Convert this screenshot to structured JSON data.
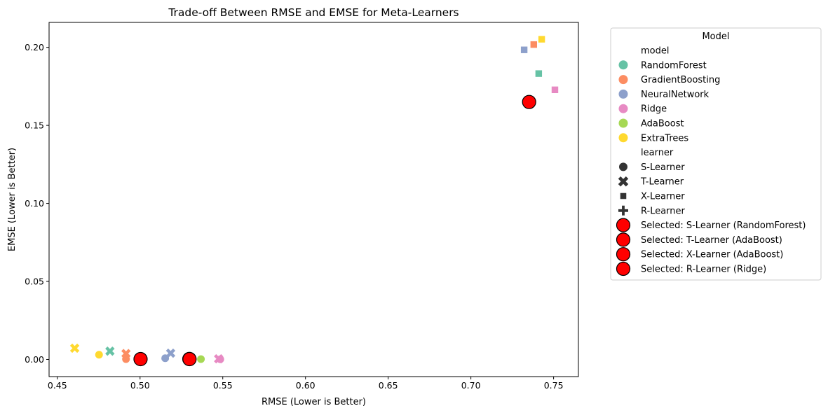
{
  "chart_data": {
    "type": "scatter",
    "title": "Trade-off Between RMSE and EMSE for Meta-Learners",
    "xlabel": "RMSE (Lower is Better)",
    "ylabel": "EMSE (Lower is Better)",
    "xlim": [
      0.445,
      0.765
    ],
    "ylim": [
      -0.011,
      0.216
    ],
    "xticks": [
      0.45,
      0.5,
      0.55,
      0.6,
      0.65,
      0.7,
      0.75
    ],
    "xtick_labels": [
      "0.45",
      "0.50",
      "0.55",
      "0.60",
      "0.65",
      "0.70",
      "0.75"
    ],
    "yticks": [
      0.0,
      0.05,
      0.1,
      0.15,
      0.2
    ],
    "ytick_labels": [
      "0.00",
      "0.05",
      "0.10",
      "0.15",
      "0.20"
    ],
    "grid": false,
    "legend_position": "outside-right",
    "colors": {
      "RandomForest": "#66c2a5",
      "GradientBoosting": "#fc8d62",
      "NeuralNetwork": "#8da0cb",
      "Ridge": "#e78ac3",
      "AdaBoost": "#a6d854",
      "ExtraTrees": "#ffd92f",
      "Selected": "#ff0000"
    },
    "points": [
      {
        "model": "RandomForest",
        "learner": "S-Learner",
        "x": 0.5003,
        "y": 0.0002
      },
      {
        "model": "GradientBoosting",
        "learner": "S-Learner",
        "x": 0.4915,
        "y": 0.0002
      },
      {
        "model": "NeuralNetwork",
        "learner": "S-Learner",
        "x": 0.5152,
        "y": 0.0008
      },
      {
        "model": "Ridge",
        "learner": "S-Learner",
        "x": 0.5485,
        "y": 0.0001
      },
      {
        "model": "AdaBoost",
        "learner": "S-Learner",
        "x": 0.5368,
        "y": 0.0002
      },
      {
        "model": "ExtraTrees",
        "learner": "S-Learner",
        "x": 0.4752,
        "y": 0.003
      },
      {
        "model": "RandomForest",
        "learner": "T-Learner",
        "x": 0.4818,
        "y": 0.0053
      },
      {
        "model": "GradientBoosting",
        "learner": "T-Learner",
        "x": 0.4915,
        "y": 0.0038
      },
      {
        "model": "NeuralNetwork",
        "learner": "T-Learner",
        "x": 0.5185,
        "y": 0.004
      },
      {
        "model": "Ridge",
        "learner": "T-Learner",
        "x": 0.5475,
        "y": 0.0004
      },
      {
        "model": "AdaBoost",
        "learner": "T-Learner",
        "x": 0.5298,
        "y": 0.0003
      },
      {
        "model": "ExtraTrees",
        "learner": "T-Learner",
        "x": 0.4605,
        "y": 0.0072
      },
      {
        "model": "RandomForest",
        "learner": "X-Learner",
        "x": 0.741,
        "y": 0.1832
      },
      {
        "model": "GradientBoosting",
        "learner": "X-Learner",
        "x": 0.738,
        "y": 0.2018
      },
      {
        "model": "NeuralNetwork",
        "learner": "X-Learner",
        "x": 0.7322,
        "y": 0.1984
      },
      {
        "model": "Ridge",
        "learner": "X-Learner",
        "x": 0.7508,
        "y": 0.1728
      },
      {
        "model": "AdaBoost",
        "learner": "X-Learner",
        "x": 0.7352,
        "y": 0.165
      },
      {
        "model": "ExtraTrees",
        "learner": "X-Learner",
        "x": 0.7428,
        "y": 0.2052
      },
      {
        "model": "Ridge",
        "learner": "R-Learner",
        "x": 0.5299,
        "y": 0.0002
      }
    ],
    "selected": [
      {
        "label": "Selected: S-Learner (RandomForest)",
        "x": 0.5003,
        "y": 0.0002
      },
      {
        "label": "Selected: T-Learner (AdaBoost)",
        "x": 0.5298,
        "y": 0.0003
      },
      {
        "label": "Selected: X-Learner (AdaBoost)",
        "x": 0.7352,
        "y": 0.165
      },
      {
        "label": "Selected: R-Learner (Ridge)",
        "x": 0.5299,
        "y": 0.0002
      }
    ],
    "legend": {
      "title": "Model",
      "entries": [
        {
          "kind": "header",
          "label": "model"
        },
        {
          "kind": "color",
          "label": "RandomForest",
          "color": "#66c2a5"
        },
        {
          "kind": "color",
          "label": "GradientBoosting",
          "color": "#fc8d62"
        },
        {
          "kind": "color",
          "label": "NeuralNetwork",
          "color": "#8da0cb"
        },
        {
          "kind": "color",
          "label": "Ridge",
          "color": "#e78ac3"
        },
        {
          "kind": "color",
          "label": "AdaBoost",
          "color": "#a6d854"
        },
        {
          "kind": "color",
          "label": "ExtraTrees",
          "color": "#ffd92f"
        },
        {
          "kind": "header",
          "label": "learner"
        },
        {
          "kind": "marker",
          "label": "S-Learner",
          "marker": "circle"
        },
        {
          "kind": "marker",
          "label": "T-Learner",
          "marker": "x"
        },
        {
          "kind": "marker",
          "label": "X-Learner",
          "marker": "square"
        },
        {
          "kind": "marker",
          "label": "R-Learner",
          "marker": "plus"
        },
        {
          "kind": "selected",
          "label": "Selected: S-Learner (RandomForest)"
        },
        {
          "kind": "selected",
          "label": "Selected: T-Learner (AdaBoost)"
        },
        {
          "kind": "selected",
          "label": "Selected: X-Learner (AdaBoost)"
        },
        {
          "kind": "selected",
          "label": "Selected: R-Learner (Ridge)"
        }
      ]
    }
  }
}
